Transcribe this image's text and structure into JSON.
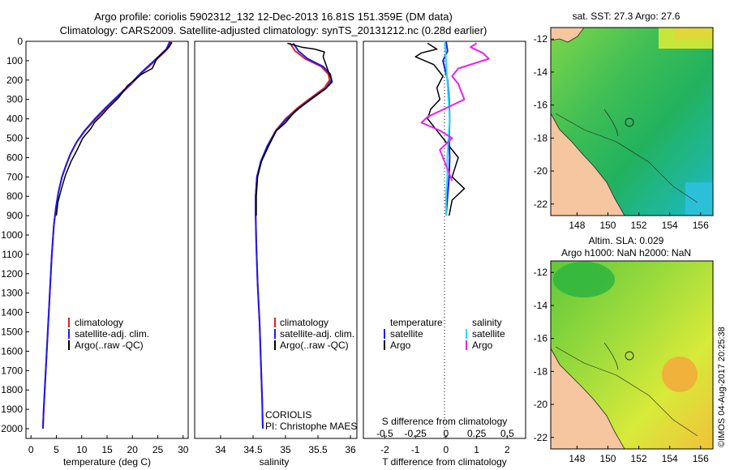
{
  "header": {
    "line1": "Argo profile: coriolis 5902312_132 12-Dec-2013 16.81S 151.359E (DM data)",
    "line2": "Climatology: CARS2009. Satellite-adjusted climatology: synTS_20131212.nc (0.28d earlier)"
  },
  "colors": {
    "climatology": "#dd2222",
    "satellite": "#1a1aee",
    "argo": "#000000",
    "sal_satellite": "#22e0f0",
    "sal_argo": "#ee22ee",
    "land": "#f5c6a0",
    "coast": "#222222"
  },
  "chart_data": [
    {
      "type": "line",
      "id": "temperature",
      "xlabel": "temperature (deg C)",
      "xlim": [
        -1,
        31
      ],
      "ylim": [
        2050,
        0
      ],
      "xticks": [
        "0",
        "5",
        "10",
        "15",
        "20",
        "25",
        "30"
      ],
      "xtick_values": [
        0,
        5,
        10,
        15,
        20,
        25,
        30
      ],
      "yticks": [
        "0",
        "100",
        "200",
        "300",
        "400",
        "500",
        "600",
        "700",
        "800",
        "900",
        "1000",
        "1100",
        "1200",
        "1300",
        "1400",
        "1500",
        "1600",
        "1700",
        "1800",
        "1900",
        "2000"
      ],
      "ytick_values": [
        0,
        100,
        200,
        300,
        400,
        500,
        600,
        700,
        800,
        900,
        1000,
        1100,
        1200,
        1300,
        1400,
        1500,
        1600,
        1700,
        1800,
        1900,
        2000
      ],
      "legend": [
        "climatology",
        "satellite-adj. clim.",
        "Argo(..raw -QC)"
      ],
      "series": [
        {
          "name": "climatology",
          "color_key": "climatology",
          "points": [
            [
              27.6,
              0
            ],
            [
              26.9,
              40
            ],
            [
              24.5,
              100
            ],
            [
              22,
              160
            ],
            [
              19.8,
              220
            ],
            [
              17.4,
              280
            ],
            [
              15,
              340
            ],
            [
              12.8,
              400
            ],
            [
              10.7,
              460
            ],
            [
              9,
              520
            ],
            [
              7.8,
              580
            ],
            [
              6.9,
              640
            ],
            [
              6.1,
              700
            ],
            [
              5.4,
              780
            ],
            [
              4.9,
              860
            ],
            [
              4.5,
              950
            ],
            [
              4.1,
              1100
            ],
            [
              3.7,
              1300
            ],
            [
              3.3,
              1500
            ],
            [
              2.9,
              1700
            ],
            [
              2.5,
              1900
            ],
            [
              2.35,
              2000
            ]
          ]
        },
        {
          "name": "satellite-adj. clim.",
          "color_key": "satellite",
          "points": [
            [
              27.4,
              0
            ],
            [
              26.7,
              40
            ],
            [
              24.3,
              100
            ],
            [
              21.8,
              160
            ],
            [
              19.6,
              220
            ],
            [
              17.2,
              280
            ],
            [
              14.8,
              340
            ],
            [
              12.6,
              400
            ],
            [
              10.6,
              460
            ],
            [
              9,
              520
            ],
            [
              7.8,
              580
            ],
            [
              6.9,
              640
            ],
            [
              6.1,
              700
            ],
            [
              5.4,
              780
            ],
            [
              4.9,
              860
            ],
            [
              4.5,
              950
            ],
            [
              4.1,
              1100
            ],
            [
              3.7,
              1300
            ],
            [
              3.3,
              1500
            ],
            [
              2.9,
              1700
            ],
            [
              2.5,
              1900
            ],
            [
              2.35,
              2000
            ]
          ]
        },
        {
          "name": "Argo(..raw -QC)",
          "color_key": "argo",
          "points": [
            [
              27.8,
              5
            ],
            [
              27.2,
              30
            ],
            [
              24.8,
              90
            ],
            [
              23.9,
              140
            ],
            [
              21.8,
              170
            ],
            [
              19,
              230
            ],
            [
              17.3,
              290
            ],
            [
              15,
              350
            ],
            [
              14,
              380
            ],
            [
              12.5,
              420
            ],
            [
              11.8,
              450
            ],
            [
              10.2,
              500
            ],
            [
              9.1,
              560
            ],
            [
              7.9,
              620
            ],
            [
              6.8,
              690
            ],
            [
              6,
              760
            ],
            [
              5.3,
              830
            ],
            [
              5,
              900
            ]
          ]
        }
      ]
    },
    {
      "type": "line",
      "id": "salinity",
      "xlabel": "salinity",
      "xlim": [
        33.6,
        36.1
      ],
      "ylim": [
        2050,
        0
      ],
      "xticks": [
        "34",
        "34.5",
        "35",
        "35.5",
        "36"
      ],
      "xtick_values": [
        34,
        34.5,
        35,
        35.5,
        36
      ],
      "legend": [
        "climatology",
        "satellite-adj. clim.",
        "Argo(..raw -QC)"
      ],
      "annotation": [
        "CORIOLIS",
        "PI: Christophe MAES"
      ],
      "series": [
        {
          "name": "climatology",
          "color_key": "climatology",
          "points": [
            [
              35.07,
              10
            ],
            [
              35.15,
              50
            ],
            [
              35.3,
              90
            ],
            [
              35.55,
              130
            ],
            [
              35.66,
              170
            ],
            [
              35.68,
              200
            ],
            [
              35.6,
              240
            ],
            [
              35.4,
              290
            ],
            [
              35.2,
              340
            ],
            [
              35.0,
              400
            ],
            [
              34.85,
              460
            ],
            [
              34.72,
              540
            ],
            [
              34.62,
              620
            ],
            [
              34.56,
              700
            ],
            [
              34.54,
              800
            ],
            [
              34.54,
              900
            ],
            [
              34.55,
              1050
            ],
            [
              34.57,
              1250
            ],
            [
              34.6,
              1450
            ],
            [
              34.62,
              1650
            ],
            [
              34.64,
              1850
            ],
            [
              34.65,
              2000
            ]
          ]
        },
        {
          "name": "satellite-adj. clim.",
          "color_key": "satellite",
          "points": [
            [
              35.12,
              10
            ],
            [
              35.2,
              50
            ],
            [
              35.34,
              90
            ],
            [
              35.58,
              130
            ],
            [
              35.69,
              170
            ],
            [
              35.71,
              200
            ],
            [
              35.63,
              240
            ],
            [
              35.43,
              290
            ],
            [
              35.23,
              340
            ],
            [
              35.02,
              400
            ],
            [
              34.86,
              460
            ],
            [
              34.72,
              540
            ],
            [
              34.62,
              620
            ],
            [
              34.56,
              700
            ],
            [
              34.54,
              800
            ],
            [
              34.54,
              900
            ],
            [
              34.55,
              1050
            ],
            [
              34.57,
              1250
            ],
            [
              34.6,
              1450
            ],
            [
              34.62,
              1650
            ],
            [
              34.64,
              1850
            ],
            [
              34.65,
              2000
            ]
          ]
        },
        {
          "name": "Argo(..raw -QC)",
          "color_key": "argo",
          "points": [
            [
              35.03,
              10
            ],
            [
              35.25,
              30
            ],
            [
              35.45,
              40
            ],
            [
              35.6,
              55
            ],
            [
              35.58,
              80
            ],
            [
              35.72,
              210
            ],
            [
              35.6,
              250
            ],
            [
              35.38,
              300
            ],
            [
              35.15,
              360
            ],
            [
              35.0,
              420
            ],
            [
              34.9,
              450
            ],
            [
              34.86,
              460
            ],
            [
              34.74,
              540
            ],
            [
              34.63,
              620
            ],
            [
              34.57,
              700
            ],
            [
              34.55,
              800
            ],
            [
              34.55,
              900
            ]
          ]
        }
      ]
    },
    {
      "type": "line",
      "id": "difference",
      "xlabel_top": "S difference from climatology",
      "xlabel": "T difference from climatology",
      "xlim": [
        -2.7,
        2.6
      ],
      "ylim": [
        2050,
        0
      ],
      "xticks": [
        "-2",
        "-1",
        "0",
        "1",
        "2"
      ],
      "xtick_values": [
        -2,
        -1,
        0,
        1,
        2
      ],
      "s_xticks": [
        "-0.5",
        "-0.25",
        "0",
        "0.25",
        "0.5"
      ],
      "s_xtick_values": [
        -0.5,
        -0.25,
        0,
        0.25,
        0.5
      ],
      "legend": {
        "left_header": "temperature",
        "right_header": "salinity",
        "items": [
          "satellite",
          "Argo",
          "satellite",
          "Argo"
        ]
      },
      "series": [
        {
          "name": "T satellite",
          "color_key": "satellite",
          "points": [
            [
              0,
              0
            ],
            [
              0.05,
              50
            ],
            [
              -0.1,
              100
            ],
            [
              0.05,
              200
            ],
            [
              0.1,
              300
            ],
            [
              0.12,
              400
            ],
            [
              0.1,
              500
            ],
            [
              0.12,
              600
            ],
            [
              0.1,
              700
            ],
            [
              0.05,
              800
            ],
            [
              0,
              900
            ]
          ]
        },
        {
          "name": "T Argo",
          "color_key": "argo",
          "points": [
            [
              -0.6,
              10
            ],
            [
              -0.3,
              40
            ],
            [
              -0.8,
              60
            ],
            [
              -1,
              80
            ],
            [
              -0.4,
              120
            ],
            [
              -0.1,
              180
            ],
            [
              -0.3,
              240
            ],
            [
              -0.2,
              300
            ],
            [
              -0.5,
              350
            ],
            [
              -0.6,
              400
            ],
            [
              -0.4,
              440
            ],
            [
              -0.2,
              480
            ],
            [
              0.2,
              560
            ],
            [
              0.4,
              600
            ],
            [
              0.2,
              700
            ],
            [
              0.6,
              760
            ],
            [
              0.2,
              820
            ],
            [
              0.1,
              900
            ]
          ]
        },
        {
          "name": "S satellite",
          "color_key": "sal_satellite",
          "points": [
            [
              -0.01,
              0
            ],
            [
              0,
              100
            ],
            [
              0.01,
              200
            ],
            [
              0.02,
              300
            ],
            [
              0.03,
              400
            ],
            [
              0.02,
              500
            ],
            [
              0.01,
              600
            ],
            [
              0.01,
              700
            ],
            [
              0,
              800
            ],
            [
              0,
              900
            ]
          ]
        },
        {
          "name": "S Argo",
          "color_key": "sal_argo",
          "points": [
            [
              0.25,
              10
            ],
            [
              0.2,
              30
            ],
            [
              0.3,
              60
            ],
            [
              0.35,
              90
            ],
            [
              0.1,
              140
            ],
            [
              0.05,
              180
            ],
            [
              0.1,
              220
            ],
            [
              0.15,
              300
            ],
            [
              -0.15,
              390
            ],
            [
              -0.2,
              420
            ],
            [
              -0.05,
              460
            ],
            [
              0.05,
              500
            ],
            [
              -0.05,
              560
            ],
            [
              0,
              640
            ],
            [
              0.05,
              720
            ]
          ]
        }
      ]
    },
    {
      "type": "heatmap",
      "id": "sst_map",
      "title": "sat. SST: 27.3 Argo: 27.6",
      "xticks": [
        "148",
        "150",
        "152",
        "154",
        "156"
      ],
      "yticks": [
        "-12",
        "-14",
        "-16",
        "-18",
        "-20",
        "-22"
      ]
    },
    {
      "type": "heatmap",
      "id": "sla_map",
      "title_line1": "Altim. SLA: 0.029",
      "title_line2": "Argo h1000: NaN h2000: NaN",
      "xticks": [
        "148",
        "150",
        "152",
        "154",
        "156"
      ],
      "yticks": [
        "-12",
        "-14",
        "-16",
        "-18",
        "-20",
        "-22"
      ]
    }
  ],
  "credit": "©IMOS 04-Aug-2017 20:25:38"
}
